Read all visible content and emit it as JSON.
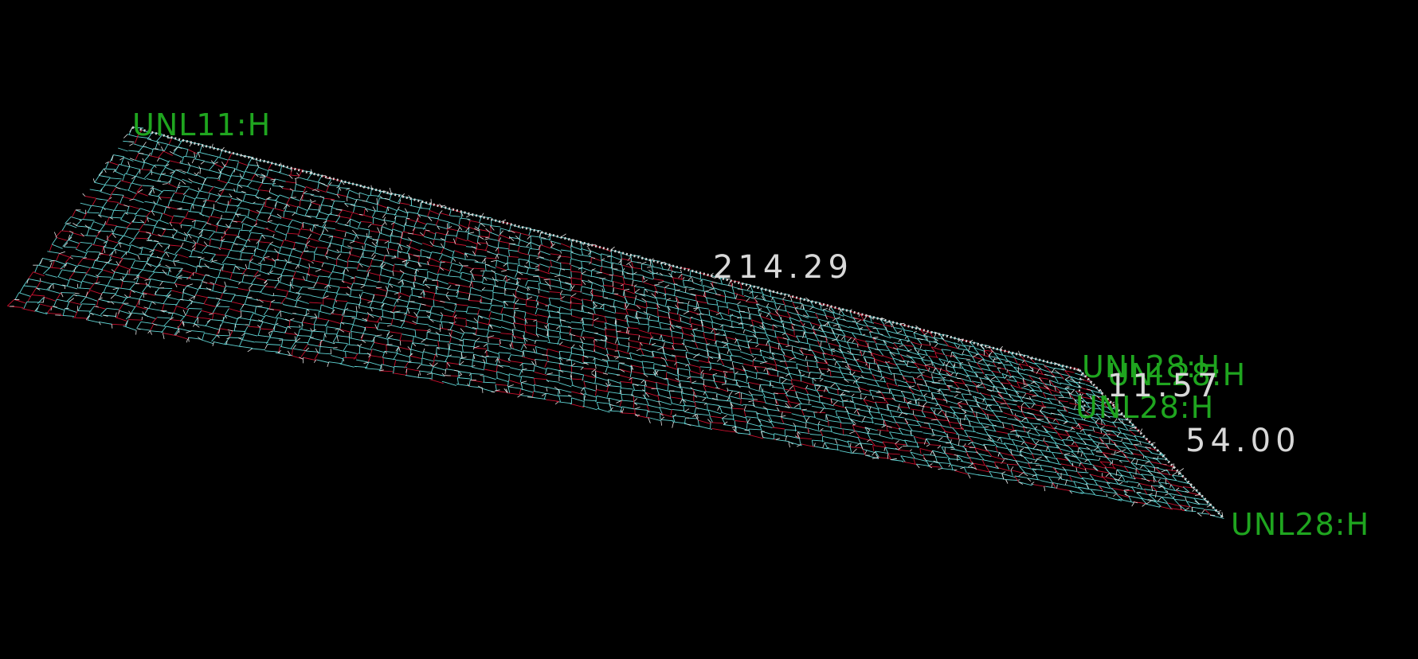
{
  "viewer": {
    "background": "#000000",
    "colors": {
      "carbon": "#5fd3d3",
      "oxygen": "#c8102e",
      "hydrogen": "#e6e6e6",
      "label": "#1fa51f",
      "measure": "#d8d8d8"
    },
    "atom_labels": [
      "UNL11:H",
      "UNL28:H",
      "UNL28:H",
      "UNL28:H",
      "UNL28:H"
    ],
    "distances": [
      "214.29",
      "54.00"
    ],
    "angle": "11.57"
  }
}
